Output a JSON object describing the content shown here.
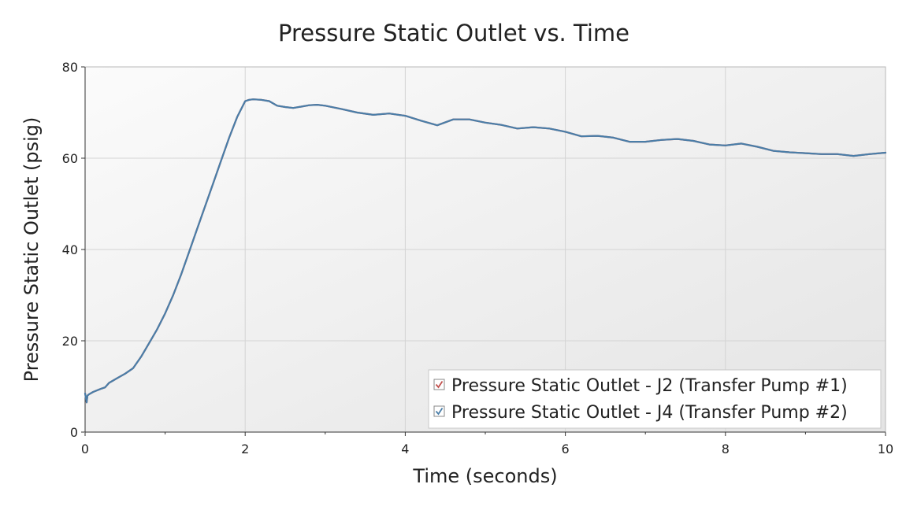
{
  "chart_data": {
    "type": "line",
    "title": "Pressure Static Outlet vs. Time",
    "xlabel": "Time (seconds)",
    "ylabel": "Pressure Static Outlet (psig)",
    "xlim": [
      0,
      10
    ],
    "ylim": [
      0,
      80
    ],
    "xticks": [
      0,
      2,
      4,
      6,
      8,
      10
    ],
    "yticks": [
      0,
      20,
      40,
      60,
      80
    ],
    "grid": true,
    "legend_position": "bottom-right",
    "series": [
      {
        "name": "Pressure Static Outlet - J2 (Transfer Pump #1)",
        "color": "#c0504d",
        "checked": true,
        "hidden_behind_other_series": true,
        "x": [
          0,
          0.02,
          0.03,
          0.05,
          0.1,
          0.2,
          0.25,
          0.3,
          0.35,
          0.4,
          0.5,
          0.6,
          0.7,
          0.8,
          0.9,
          1.0,
          1.1,
          1.2,
          1.3,
          1.4,
          1.5,
          1.6,
          1.7,
          1.8,
          1.9,
          2.0,
          2.05,
          2.1,
          2.2,
          2.3,
          2.4,
          2.5,
          2.6,
          2.7,
          2.8,
          2.9,
          3.0,
          3.2,
          3.4,
          3.6,
          3.8,
          4.0,
          4.2,
          4.4,
          4.6,
          4.8,
          5.0,
          5.2,
          5.4,
          5.6,
          5.8,
          6.0,
          6.2,
          6.4,
          6.6,
          6.8,
          7.0,
          7.2,
          7.4,
          7.6,
          7.8,
          8.0,
          8.2,
          8.4,
          8.6,
          8.8,
          9.0,
          9.2,
          9.4,
          9.6,
          9.8,
          10.0
        ],
        "y": [
          8.5,
          6.5,
          8.0,
          8.3,
          8.8,
          9.5,
          9.8,
          10.8,
          11.3,
          11.8,
          12.8,
          14.0,
          16.5,
          19.5,
          22.5,
          26.0,
          30.0,
          34.5,
          39.5,
          44.5,
          49.5,
          54.5,
          59.5,
          64.5,
          69.0,
          72.5,
          72.8,
          72.9,
          72.8,
          72.5,
          71.5,
          71.2,
          71.0,
          71.3,
          71.6,
          71.7,
          71.5,
          70.8,
          70.0,
          69.5,
          69.8,
          69.3,
          68.2,
          67.2,
          68.5,
          68.5,
          67.8,
          67.3,
          66.5,
          66.8,
          66.5,
          65.8,
          64.8,
          64.9,
          64.5,
          63.6,
          63.6,
          64.0,
          64.2,
          63.8,
          63.0,
          62.8,
          63.2,
          62.5,
          61.6,
          61.3,
          61.1,
          60.9,
          60.9,
          60.5,
          60.9,
          61.2
        ]
      },
      {
        "name": "Pressure Static Outlet - J4 (Transfer Pump #2)",
        "color": "#4a7ea8",
        "checked": true,
        "x": [
          0,
          0.02,
          0.03,
          0.05,
          0.1,
          0.2,
          0.25,
          0.3,
          0.35,
          0.4,
          0.5,
          0.6,
          0.7,
          0.8,
          0.9,
          1.0,
          1.1,
          1.2,
          1.3,
          1.4,
          1.5,
          1.6,
          1.7,
          1.8,
          1.9,
          2.0,
          2.05,
          2.1,
          2.2,
          2.3,
          2.4,
          2.5,
          2.6,
          2.7,
          2.8,
          2.9,
          3.0,
          3.2,
          3.4,
          3.6,
          3.8,
          4.0,
          4.2,
          4.4,
          4.6,
          4.8,
          5.0,
          5.2,
          5.4,
          5.6,
          5.8,
          6.0,
          6.2,
          6.4,
          6.6,
          6.8,
          7.0,
          7.2,
          7.4,
          7.6,
          7.8,
          8.0,
          8.2,
          8.4,
          8.6,
          8.8,
          9.0,
          9.2,
          9.4,
          9.6,
          9.8,
          10.0
        ],
        "y": [
          8.5,
          6.5,
          8.0,
          8.3,
          8.8,
          9.5,
          9.8,
          10.8,
          11.3,
          11.8,
          12.8,
          14.0,
          16.5,
          19.5,
          22.5,
          26.0,
          30.0,
          34.5,
          39.5,
          44.5,
          49.5,
          54.5,
          59.5,
          64.5,
          69.0,
          72.5,
          72.8,
          72.9,
          72.8,
          72.5,
          71.5,
          71.2,
          71.0,
          71.3,
          71.6,
          71.7,
          71.5,
          70.8,
          70.0,
          69.5,
          69.8,
          69.3,
          68.2,
          67.2,
          68.5,
          68.5,
          67.8,
          67.3,
          66.5,
          66.8,
          66.5,
          65.8,
          64.8,
          64.9,
          64.5,
          63.6,
          63.6,
          64.0,
          64.2,
          63.8,
          63.0,
          62.8,
          63.2,
          62.5,
          61.6,
          61.3,
          61.1,
          60.9,
          60.9,
          60.5,
          60.9,
          61.2
        ]
      }
    ]
  }
}
